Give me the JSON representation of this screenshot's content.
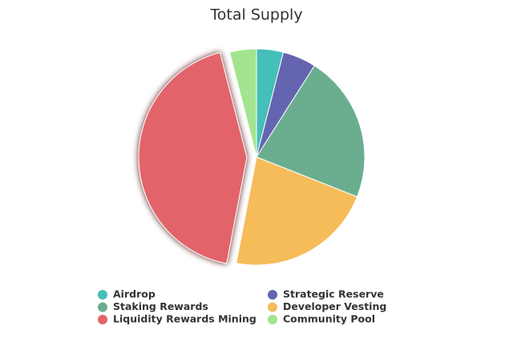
{
  "chart_data": {
    "type": "pie",
    "title": "Total Supply",
    "categories": [
      "Airdrop",
      "Strategic Reserve",
      "Staking Rewards",
      "Developer Vesting",
      "Liquidity Rewards Mining",
      "Community Pool"
    ],
    "values": [
      4,
      5,
      22,
      22,
      43,
      4
    ],
    "colors": [
      "#45bfb9",
      "#6464b0",
      "#6aae8f",
      "#f6bc5a",
      "#e3646a",
      "#a2e48f"
    ],
    "exploded": 4,
    "legend": "bottom"
  }
}
